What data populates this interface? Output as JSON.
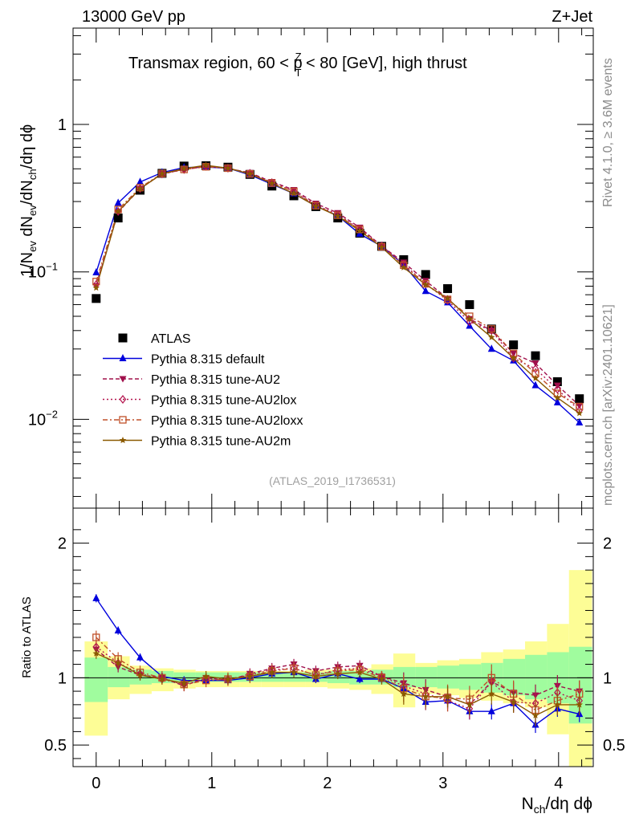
{
  "header": {
    "left": "13000 GeV pp",
    "right": "Z+Jet"
  },
  "side": {
    "rivet": "Rivet 4.1.0, ≥ 3.6M events",
    "mcplots": "mcplots.cern.ch [arXiv:2401.10621]"
  },
  "colors": {
    "atlas": "#000000",
    "default": "#0000dd",
    "au2": "#a0104c",
    "au2lox": "#b4144e",
    "au2loxx": "#c0502a",
    "au2m": "#8b5a00",
    "band_inner": "#a0fc9e",
    "band_outer": "#fdfd96"
  },
  "chart_data": [
    {
      "type": "scatter",
      "scale": "log",
      "title": "Transmax region, 60 < p",
      "title_sup": "Z",
      "title_sub": "T",
      "title_tail": " < 80 [GeV], high thrust",
      "ylabel": "1/N",
      "ylabel_parts": [
        "1/N",
        "ev",
        " dN",
        "ev",
        "/dN",
        "ch",
        "/dη dϕ"
      ],
      "ylim": [
        0.0025,
        4.5
      ],
      "xlim": [
        -0.2,
        4.3
      ],
      "yticks": [
        {
          "value": 0.01,
          "base": "10",
          "exp": "−2"
        },
        {
          "value": 0.1,
          "base": "10",
          "exp": "−1"
        },
        {
          "value": 1,
          "label": "1"
        }
      ],
      "watermark": "(ATLAS_2019_I1736531)",
      "x": [
        0.0,
        0.19,
        0.38,
        0.57,
        0.76,
        0.95,
        1.14,
        1.33,
        1.52,
        1.71,
        1.9,
        2.09,
        2.28,
        2.47,
        2.66,
        2.85,
        3.04,
        3.23,
        3.42,
        3.61,
        3.8,
        3.99,
        4.18
      ],
      "series": [
        {
          "name": "ATLAS",
          "key": "atlas",
          "marker": "square",
          "values": [
            0.066,
            0.232,
            0.358,
            0.466,
            0.522,
            0.525,
            0.513,
            0.458,
            0.382,
            0.328,
            0.277,
            0.232,
            0.183,
            0.149,
            0.121,
            0.096,
            0.077,
            0.06,
            0.041,
            0.032,
            0.027,
            0.018,
            0.0138
          ]
        },
        {
          "name": "Pythia 8.315 default",
          "key": "default",
          "marker": "triangle-up",
          "dash": "",
          "values": [
            0.099,
            0.293,
            0.407,
            0.472,
            0.51,
            0.513,
            0.505,
            0.455,
            0.393,
            0.34,
            0.28,
            0.24,
            0.181,
            0.149,
            0.112,
            0.074,
            0.062,
            0.043,
            0.03,
            0.025,
            0.017,
            0.013,
            0.0095
          ]
        },
        {
          "name": "Pythia 8.315 tune-AU2",
          "key": "au2",
          "marker": "triangle-down",
          "dash": "5,3",
          "values": [
            0.08,
            0.254,
            0.367,
            0.464,
            0.493,
            0.522,
            0.503,
            0.47,
            0.408,
            0.36,
            0.291,
            0.251,
            0.2,
            0.15,
            0.116,
            0.087,
            0.066,
            0.048,
            0.04,
            0.028,
            0.024,
            0.017,
            0.0124
          ]
        },
        {
          "name": "Pythia 8.315 tune-AU2lox",
          "key": "au2lox",
          "marker": "diamond",
          "dash": "2,3",
          "values": [
            0.082,
            0.257,
            0.368,
            0.461,
            0.494,
            0.519,
            0.505,
            0.466,
            0.403,
            0.352,
            0.284,
            0.245,
            0.195,
            0.15,
            0.113,
            0.083,
            0.064,
            0.046,
            0.04,
            0.026,
            0.022,
            0.016,
            0.0115
          ]
        },
        {
          "name": "Pythia 8.315 tune-AU2loxx",
          "key": "au2loxx",
          "marker": "square-open",
          "dash": "6,3,2,3",
          "values": [
            0.086,
            0.265,
            0.373,
            0.465,
            0.495,
            0.516,
            0.505,
            0.462,
            0.4,
            0.351,
            0.281,
            0.242,
            0.194,
            0.148,
            0.111,
            0.083,
            0.065,
            0.05,
            0.041,
            0.028,
            0.0205,
            0.015,
            0.0122
          ]
        },
        {
          "name": "Pythia 8.315 tune-AU2m",
          "key": "au2m",
          "marker": "star",
          "dash": "",
          "values": [
            0.078,
            0.257,
            0.366,
            0.463,
            0.501,
            0.528,
            0.505,
            0.462,
            0.398,
            0.34,
            0.279,
            0.239,
            0.19,
            0.147,
            0.107,
            0.082,
            0.066,
            0.048,
            0.036,
            0.026,
            0.019,
            0.014,
            0.011
          ]
        }
      ]
    },
    {
      "type": "scatter",
      "scale": "linear",
      "ylabel": "Ratio to ATLAS",
      "xlabel": "N",
      "xlabel_sub": "ch",
      "xlabel_tail": "/dη dϕ",
      "ylim": [
        0.34,
        2.26
      ],
      "xticks": [
        0,
        1,
        2,
        3,
        4
      ],
      "yticks": [
        0.5,
        1,
        2
      ],
      "band_edges": [
        -0.1,
        0.1,
        0.29,
        0.48,
        0.67,
        0.86,
        1.05,
        1.24,
        1.43,
        1.62,
        1.81,
        2.0,
        2.19,
        2.38,
        2.57,
        2.76,
        2.95,
        3.14,
        3.33,
        3.52,
        3.71,
        3.9,
        4.09,
        4.29
      ],
      "band_inner": [
        [
          0.82,
          1.15
        ],
        [
          0.93,
          1.08
        ],
        [
          0.95,
          1.06
        ],
        [
          0.96,
          1.05
        ],
        [
          0.96,
          1.04
        ],
        [
          0.97,
          1.04
        ],
        [
          0.97,
          1.04
        ],
        [
          0.97,
          1.04
        ],
        [
          0.97,
          1.04
        ],
        [
          0.97,
          1.04
        ],
        [
          0.97,
          1.04
        ],
        [
          0.96,
          1.05
        ],
        [
          0.95,
          1.05
        ],
        [
          0.95,
          1.06
        ],
        [
          0.93,
          1.08
        ],
        [
          0.93,
          1.08
        ],
        [
          0.92,
          1.09
        ],
        [
          0.91,
          1.1
        ],
        [
          0.89,
          1.11
        ],
        [
          0.87,
          1.14
        ],
        [
          0.84,
          1.17
        ],
        [
          0.81,
          1.19
        ],
        [
          0.66,
          1.23
        ]
      ],
      "band_outer": [
        [
          0.57,
          1.27
        ],
        [
          0.84,
          1.16
        ],
        [
          0.88,
          1.09
        ],
        [
          0.9,
          1.07
        ],
        [
          0.92,
          1.06
        ],
        [
          0.93,
          1.05
        ],
        [
          0.93,
          1.05
        ],
        [
          0.93,
          1.05
        ],
        [
          0.93,
          1.05
        ],
        [
          0.93,
          1.05
        ],
        [
          0.93,
          1.06
        ],
        [
          0.92,
          1.06
        ],
        [
          0.91,
          1.07
        ],
        [
          0.88,
          1.1
        ],
        [
          0.78,
          1.18
        ],
        [
          0.88,
          1.11
        ],
        [
          0.87,
          1.13
        ],
        [
          0.85,
          1.14
        ],
        [
          0.83,
          1.19
        ],
        [
          0.81,
          1.21
        ],
        [
          0.78,
          1.27
        ],
        [
          0.58,
          1.4
        ],
        [
          0.3,
          1.8
        ]
      ],
      "series": [
        {
          "key": "default",
          "values": [
            1.59,
            1.35,
            1.15,
            1.01,
            0.98,
            0.98,
            0.98,
            1.0,
            1.03,
            1.04,
            0.99,
            1.03,
            0.99,
            0.99,
            0.92,
            0.82,
            0.83,
            0.75,
            0.75,
            0.81,
            0.65,
            0.77,
            0.73
          ],
          "err": 0.03
        },
        {
          "key": "au2",
          "values": [
            1.21,
            1.08,
            1.02,
            1.0,
            0.94,
            1.0,
            0.98,
            1.03,
            1.07,
            1.1,
            1.05,
            1.08,
            1.09,
            1.01,
            0.96,
            0.91,
            0.86,
            0.8,
            0.97,
            0.89,
            0.87,
            0.94,
            0.9
          ],
          "err": 0.04
        },
        {
          "key": "au2lox",
          "values": [
            1.23,
            1.11,
            1.03,
            0.99,
            0.95,
            0.99,
            0.99,
            1.02,
            1.06,
            1.07,
            1.02,
            1.06,
            1.07,
            1.01,
            0.94,
            0.88,
            0.83,
            0.77,
            0.97,
            0.82,
            0.81,
            0.89,
            0.83
          ],
          "err": 0.04
        },
        {
          "key": "au2loxx",
          "values": [
            1.3,
            1.14,
            1.04,
            1.0,
            0.95,
            0.98,
            0.99,
            1.01,
            1.05,
            1.07,
            1.02,
            1.05,
            1.06,
            1.0,
            0.92,
            0.86,
            0.85,
            0.84,
            1.0,
            0.88,
            0.76,
            0.83,
            0.88
          ],
          "err": 0.05
        },
        {
          "key": "au2m",
          "values": [
            1.18,
            1.11,
            1.02,
            0.99,
            0.96,
            1.01,
            0.99,
            1.01,
            1.04,
            1.04,
            1.01,
            1.03,
            1.04,
            0.99,
            0.88,
            0.86,
            0.86,
            0.8,
            0.88,
            0.82,
            0.72,
            0.8,
            0.8
          ],
          "err": 0.04
        }
      ]
    }
  ]
}
